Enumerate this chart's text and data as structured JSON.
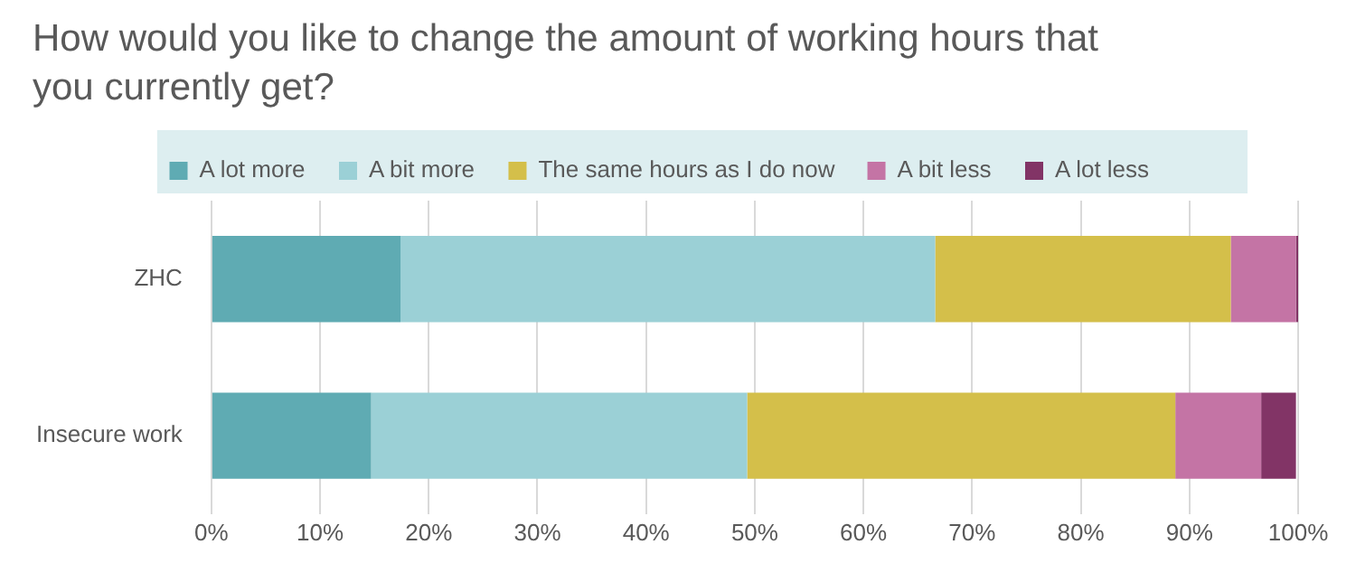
{
  "chart_data": {
    "type": "bar",
    "title": "How would you like to change the amount of working hours that you currently get?",
    "orientation": "horizontal",
    "stacked": true,
    "categories": [
      "ZHC",
      "Insecure work"
    ],
    "series": [
      {
        "name": "A lot more",
        "color": "#5fabb3",
        "values": [
          17.4,
          14.7
        ]
      },
      {
        "name": "A bit more",
        "color": "#9bd0d6",
        "values": [
          49.2,
          34.6
        ]
      },
      {
        "name": "The same hours as I do now",
        "color": "#d4bf4a",
        "values": [
          27.2,
          39.4
        ]
      },
      {
        "name": "A bit less",
        "color": "#c474a5",
        "values": [
          6.0,
          7.9
        ]
      },
      {
        "name": "A lot less",
        "color": "#823466",
        "values": [
          0.2,
          3.2
        ]
      }
    ],
    "xlim": [
      0,
      100
    ],
    "xticks": [
      {
        "value": 0,
        "label": "0%"
      },
      {
        "value": 10,
        "label": "10%"
      },
      {
        "value": 20,
        "label": "20%"
      },
      {
        "value": 30,
        "label": "30%"
      },
      {
        "value": 40,
        "label": "40%"
      },
      {
        "value": 50,
        "label": "50%"
      },
      {
        "value": 60,
        "label": "60%"
      },
      {
        "value": 70,
        "label": "70%"
      },
      {
        "value": 80,
        "label": "80%"
      },
      {
        "value": 90,
        "label": "90%"
      },
      {
        "value": 100,
        "label": "100%"
      }
    ],
    "grid": "x",
    "legend": "top"
  }
}
